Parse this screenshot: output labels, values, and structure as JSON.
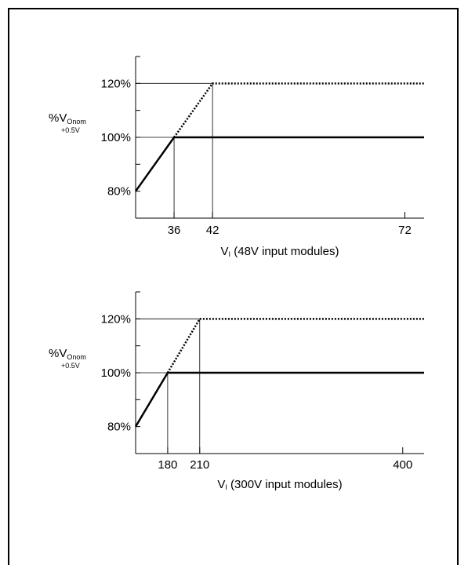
{
  "chart_data": [
    {
      "type": "line",
      "ylabel_main": "%V",
      "ylabel_sub": "Onom",
      "ylabel_offset": "+0.5V",
      "xlabel_main": "V",
      "xlabel_sub": "I",
      "xlabel_rest": " (48V input modules)",
      "xlim": [
        30,
        75
      ],
      "ylim": [
        70,
        130
      ],
      "xticks": [
        {
          "value": 36,
          "label": "36"
        },
        {
          "value": 42,
          "label": "42"
        },
        {
          "value": 72,
          "label": "72"
        }
      ],
      "yticks": [
        {
          "value": 80,
          "label": "80%"
        },
        {
          "value": 100,
          "label": "100%"
        },
        {
          "value": 120,
          "label": "120%"
        }
      ],
      "minor_yticks": [
        90,
        110
      ],
      "ref_lines": {
        "y": [
          100,
          120
        ],
        "x": [
          36,
          42
        ]
      },
      "series": [
        {
          "style": "solid",
          "points": [
            [
              30,
              80
            ],
            [
              36,
              100
            ],
            [
              75,
              100
            ]
          ]
        },
        {
          "style": "dotted",
          "points": [
            [
              36,
              100
            ],
            [
              42,
              120
            ],
            [
              75,
              120
            ]
          ]
        }
      ]
    },
    {
      "type": "line",
      "ylabel_main": "%V",
      "ylabel_sub": "Onom",
      "ylabel_offset": "+0.5V",
      "xlabel_main": "V",
      "xlabel_sub": "I",
      "xlabel_rest": " (300V input modules)",
      "xlim": [
        150,
        420
      ],
      "ylim": [
        70,
        130
      ],
      "xticks": [
        {
          "value": 180,
          "label": "180"
        },
        {
          "value": 210,
          "label": "210"
        },
        {
          "value": 400,
          "label": "400"
        }
      ],
      "yticks": [
        {
          "value": 80,
          "label": "80%"
        },
        {
          "value": 100,
          "label": "100%"
        },
        {
          "value": 120,
          "label": "120%"
        }
      ],
      "minor_yticks": [
        90,
        110
      ],
      "ref_lines": {
        "y": [
          100,
          120
        ],
        "x": [
          180,
          210
        ]
      },
      "series": [
        {
          "style": "solid",
          "points": [
            [
              150,
              80
            ],
            [
              180,
              100
            ],
            [
              420,
              100
            ]
          ]
        },
        {
          "style": "dotted",
          "points": [
            [
              180,
              100
            ],
            [
              210,
              120
            ],
            [
              420,
              120
            ]
          ]
        }
      ]
    }
  ]
}
